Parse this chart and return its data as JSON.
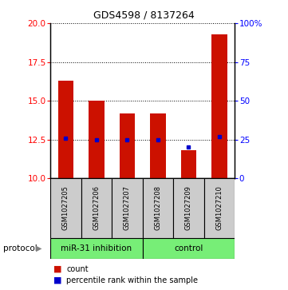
{
  "title": "GDS4598 / 8137264",
  "samples": [
    "GSM1027205",
    "GSM1027206",
    "GSM1027207",
    "GSM1027208",
    "GSM1027209",
    "GSM1027210"
  ],
  "red_values": [
    16.3,
    15.0,
    14.2,
    14.2,
    11.8,
    19.3
  ],
  "blue_pct": [
    26,
    25,
    25,
    25,
    20,
    27
  ],
  "ylim": [
    10,
    20
  ],
  "yticks_left": [
    10,
    12.5,
    15,
    17.5,
    20
  ],
  "yticks_right": [
    0,
    25,
    50,
    75,
    100
  ],
  "bar_color": "#cc1100",
  "dot_color": "#0000cc",
  "bar_width": 0.5,
  "background_color": "#ffffff",
  "label_bg": "#cccccc",
  "protocol_green": "#77ee77",
  "protocol_label": "protocol",
  "legend_count": "count",
  "legend_pct": "percentile rank within the sample",
  "title_fontsize": 9,
  "tick_fontsize": 7.5,
  "sample_fontsize": 6,
  "legend_fontsize": 7,
  "protocol_fontsize": 7.5
}
